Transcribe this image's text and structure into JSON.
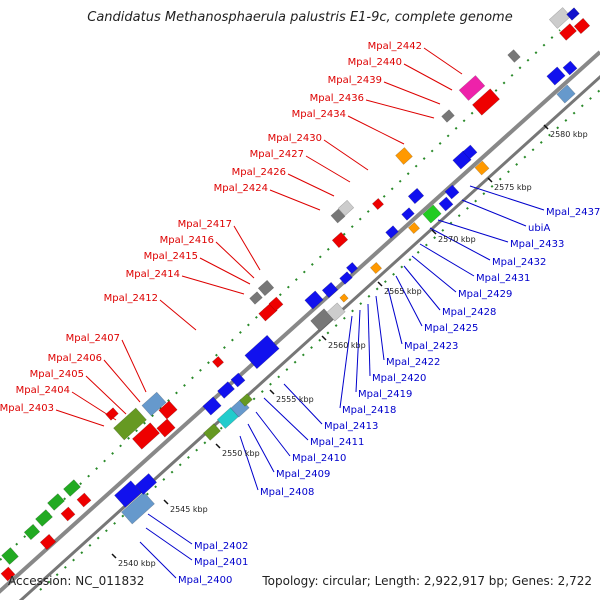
{
  "title": "Candidatus Methanosphaerula palustris E1-9c, complete genome",
  "footer": {
    "accession": "Accession: NC_011832",
    "summary": "Topology: circular; Length: 2,922,917 bp; Genes: 2,722"
  },
  "colors": {
    "forward_label": "#dd0000",
    "reverse_label": "#0000cc",
    "backbone": "#888888",
    "tick": "#228822"
  },
  "kbp_markers": [
    {
      "label": "2540 kbp"
    },
    {
      "label": "2545 kbp"
    },
    {
      "label": "2550 kbp"
    },
    {
      "label": "2555 kbp"
    },
    {
      "label": "2560 kbp"
    },
    {
      "label": "2565 kbp"
    },
    {
      "label": "2570 kbp"
    },
    {
      "label": "2575 kbp"
    },
    {
      "label": "2580 kbp"
    }
  ],
  "forward_genes": [
    "Mpal_2442",
    "Mpal_2440",
    "Mpal_2439",
    "Mpal_2436",
    "Mpal_2434",
    "Mpal_2430",
    "Mpal_2427",
    "Mpal_2426",
    "Mpal_2424",
    "Mpal_2417",
    "Mpal_2416",
    "Mpal_2415",
    "Mpal_2414",
    "Mpal_2412",
    "Mpal_2407",
    "Mpal_2406",
    "Mpal_2405",
    "Mpal_2404",
    "Mpal_2403"
  ],
  "reverse_genes": [
    "Mpal_2437",
    "ubiA",
    "Mpal_2433",
    "Mpal_2432",
    "Mpal_2431",
    "Mpal_2429",
    "Mpal_2428",
    "Mpal_2425",
    "Mpal_2423",
    "Mpal_2422",
    "Mpal_2420",
    "Mpal_2419",
    "Mpal_2418",
    "Mpal_2413",
    "Mpal_2411",
    "Mpal_2410",
    "Mpal_2409",
    "Mpal_2408",
    "Mpal_2402",
    "Mpal_2401",
    "Mpal_2400"
  ]
}
